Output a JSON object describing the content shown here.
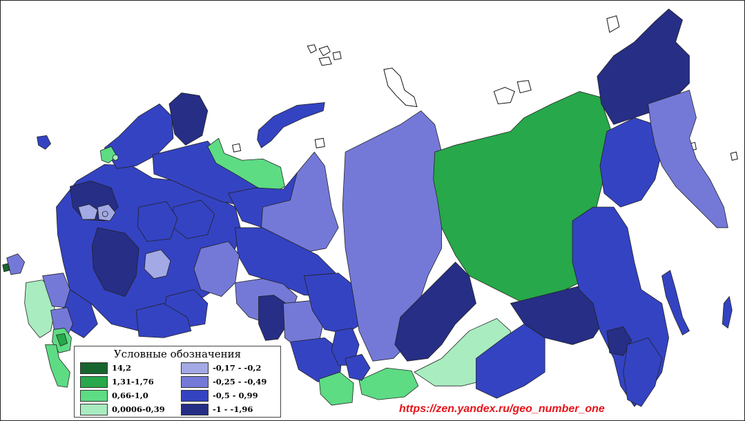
{
  "legend": {
    "title": "Условные обозначения",
    "items": [
      {
        "label": "14,2",
        "color": "#17652e"
      },
      {
        "label": "1,31-1,76",
        "color": "#27a84a"
      },
      {
        "label": "0,66-1,0",
        "color": "#5ddc84"
      },
      {
        "label": "0,0006-0,39",
        "color": "#a8ecc0"
      },
      {
        "label": "-0,17 - -0,2",
        "color": "#a3a9e4"
      },
      {
        "label": "-0,25 - -0,49",
        "color": "#7479d8"
      },
      {
        "label": "-0,5 - 0,99",
        "color": "#3443c2"
      },
      {
        "label": "-1 - -1,96",
        "color": "#262e86"
      }
    ]
  },
  "watermark": "https://zen.yandex.ru/geo_number_one"
}
